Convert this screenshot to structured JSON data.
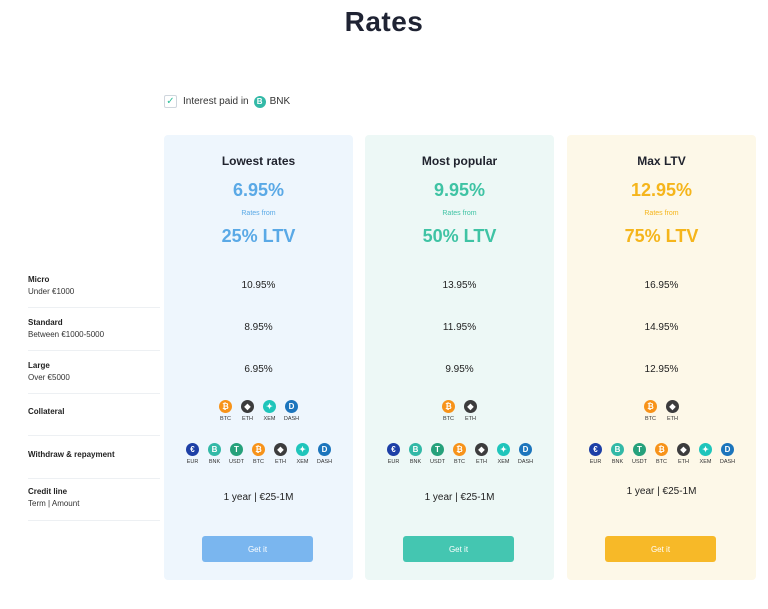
{
  "page": {
    "title": "Rates"
  },
  "interest": {
    "label": "Interest paid in",
    "badge": "B",
    "token": "BNK",
    "checked": true
  },
  "rows": [
    {
      "main": "Micro",
      "sub": "Under €1000"
    },
    {
      "main": "Standard",
      "sub": "Between €1000-5000"
    },
    {
      "main": "Large",
      "sub": "Over €5000"
    },
    {
      "main": "Collateral",
      "sub": ""
    },
    {
      "main": "Withdraw & repayment",
      "sub": ""
    },
    {
      "main": "Credit line",
      "sub": "Term | Amount"
    }
  ],
  "coins": {
    "EUR": {
      "color": "#1d3fa6",
      "glyph": "€"
    },
    "BNK": {
      "color": "#33b9a7",
      "glyph": "B"
    },
    "USDT": {
      "color": "#26a17b",
      "glyph": "T"
    },
    "BTC": {
      "color": "#f7931a",
      "glyph": "₿"
    },
    "ETH": {
      "color": "#3c3c3d",
      "glyph": "◆"
    },
    "XEM": {
      "color": "#1fc5bb",
      "glyph": "✦"
    },
    "DASH": {
      "color": "#1c75bc",
      "glyph": "D"
    }
  },
  "plans": [
    {
      "name": "Lowest rates",
      "rate": "6.95%",
      "from": "Rates from",
      "ltv": "25% LTV",
      "accent": "#5aa9e6",
      "bg": "#eef6fd",
      "button_color": "#7ab6ef",
      "micro": "10.95%",
      "standard": "8.95%",
      "large": "6.95%",
      "collateral": [
        "BTC",
        "ETH",
        "XEM",
        "DASH"
      ],
      "withdraw": [
        "EUR",
        "BNK",
        "USDT",
        "BTC",
        "ETH",
        "XEM",
        "DASH"
      ],
      "credit": "1 year | €25-1M",
      "button": "Get it"
    },
    {
      "name": "Most popular",
      "rate": "9.95%",
      "from": "Rates from",
      "ltv": "50% LTV",
      "accent": "#3fc3a4",
      "bg": "#edf8f6",
      "button_color": "#44c6b1",
      "micro": "13.95%",
      "standard": "11.95%",
      "large": "9.95%",
      "collateral": [
        "BTC",
        "ETH"
      ],
      "withdraw": [
        "EUR",
        "BNK",
        "USDT",
        "BTC",
        "ETH",
        "XEM",
        "DASH"
      ],
      "credit": "1 year | €25-1M",
      "button": "Get it"
    },
    {
      "name": "Max LTV",
      "rate": "12.95%",
      "from": "Rates from",
      "ltv": "75% LTV",
      "accent": "#f5b51b",
      "bg": "#fdf8e8",
      "button_color": "#f7b928",
      "micro": "16.95%",
      "standard": "14.95%",
      "large": "12.95%",
      "collateral": [
        "BTC",
        "ETH"
      ],
      "withdraw": [
        "EUR",
        "BNK",
        "USDT",
        "BTC",
        "ETH",
        "XEM",
        "DASH"
      ],
      "credit": "1 year | €25-1M",
      "button": "Get it"
    }
  ]
}
